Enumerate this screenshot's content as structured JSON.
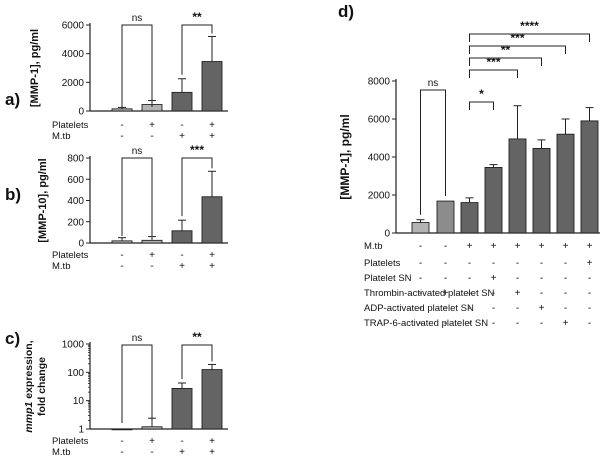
{
  "colors": {
    "bar_light": "#b3b3b3",
    "bar_mid": "#8c8c8c",
    "bar_dark": "#646464",
    "axis": "#222222"
  },
  "chart_data": [
    {
      "panel": "a)",
      "type": "bar",
      "ylabel": "[MMP-1], pg/ml",
      "ylim": [
        0,
        6000
      ],
      "yticks": [
        0,
        2000,
        4000,
        6000
      ],
      "row_labels": [
        "Platelets",
        "M.tb"
      ],
      "conditions": [
        [
          "-",
          "-"
        ],
        [
          "+",
          "-"
        ],
        [
          "-",
          "+"
        ],
        [
          "+",
          "+"
        ]
      ],
      "values": [
        150,
        450,
        1300,
        3450
      ],
      "errors": [
        100,
        280,
        950,
        1750
      ],
      "significance": [
        {
          "from": 0,
          "to": 1,
          "label": "ns"
        },
        {
          "from": 2,
          "to": 3,
          "label": "**"
        }
      ]
    },
    {
      "panel": "b)",
      "type": "bar",
      "ylabel": "[MMP-10], pg/ml",
      "ylim": [
        0,
        800
      ],
      "yticks": [
        0,
        200,
        400,
        600,
        800
      ],
      "row_labels": [
        "Platelets",
        "M.tb"
      ],
      "conditions": [
        [
          "-",
          "-"
        ],
        [
          "+",
          "-"
        ],
        [
          "-",
          "+"
        ],
        [
          "+",
          "+"
        ]
      ],
      "values": [
        20,
        25,
        115,
        435
      ],
      "errors": [
        30,
        35,
        100,
        240
      ],
      "significance": [
        {
          "from": 0,
          "to": 1,
          "label": "ns"
        },
        {
          "from": 2,
          "to": 3,
          "label": "***"
        }
      ]
    },
    {
      "panel": "c)",
      "type": "bar",
      "scale": "log",
      "ylabel_italic": "mmp1",
      "ylabel": "expression,",
      "ylabel2": "fold change",
      "ylim": [
        1,
        1000
      ],
      "yticks": [
        1,
        10,
        100,
        1000
      ],
      "row_labels": [
        "Platelets",
        "M.tb"
      ],
      "conditions": [
        [
          "-",
          "-"
        ],
        [
          "+",
          "-"
        ],
        [
          "-",
          "+"
        ],
        [
          "+",
          "+"
        ]
      ],
      "values": [
        1,
        1.2,
        27,
        125
      ],
      "errors_top": [
        1,
        2.4,
        42,
        190
      ],
      "significance": [
        {
          "from": 0,
          "to": 1,
          "label": "ns"
        },
        {
          "from": 2,
          "to": 3,
          "label": "**"
        }
      ]
    },
    {
      "panel": "d)",
      "type": "bar",
      "ylabel": "[MMP-1], pg/ml",
      "ylim": [
        0,
        8000
      ],
      "yticks": [
        0,
        2000,
        4000,
        6000,
        8000
      ],
      "row_labels": [
        "M.tb",
        "Platelets",
        "Platelet SN",
        "Thrombin-activated platelet SN",
        "ADP-activated platelet SN",
        "TRAP-6-activated platelet SN"
      ],
      "conditions": [
        [
          "-",
          "-",
          "-",
          "-",
          "-",
          "-"
        ],
        [
          "-",
          "-",
          "-",
          "+",
          "-",
          "-"
        ],
        [
          "+",
          "-",
          "-",
          "-",
          "-",
          "-"
        ],
        [
          "+",
          "-",
          "+",
          "-",
          "-",
          "-"
        ],
        [
          "+",
          "-",
          "-",
          "+",
          "-",
          "-"
        ],
        [
          "+",
          "-",
          "-",
          "-",
          "+",
          "-"
        ],
        [
          "+",
          "-",
          "-",
          "-",
          "-",
          "+"
        ],
        [
          "+",
          "+",
          "-",
          "-",
          "-",
          "-"
        ]
      ],
      "values": [
        550,
        1680,
        1600,
        3450,
        4950,
        4450,
        5200,
        5900
      ],
      "errors": [
        150,
        0,
        250,
        150,
        1750,
        450,
        800,
        700
      ],
      "significance": [
        {
          "from": 0,
          "to": 1,
          "label": "ns"
        },
        {
          "from": 2,
          "to": 3,
          "label": "*"
        },
        {
          "from": 2,
          "to": 4,
          "label": "***"
        },
        {
          "from": 2,
          "to": 5,
          "label": "**"
        },
        {
          "from": 2,
          "to": 6,
          "label": "***"
        },
        {
          "from": 2,
          "to": 7,
          "label": "****"
        }
      ]
    }
  ]
}
